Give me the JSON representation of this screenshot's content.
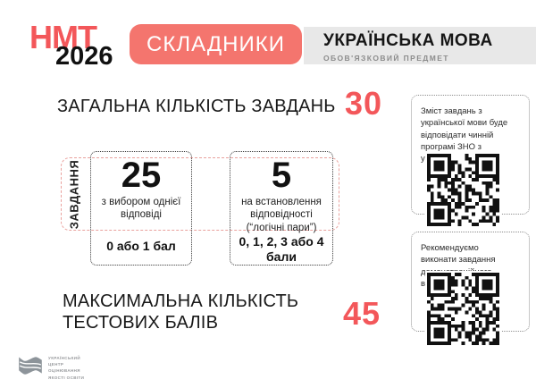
{
  "header": {
    "brand_top": "НМТ",
    "brand_year": "2026",
    "badge": "СКЛАДНИКИ",
    "subject": "УКРАЇНСЬКА МОВА",
    "subject_note": "ОБОВ'ЯЗКОВИЙ ПРЕДМЕТ"
  },
  "totals": {
    "total_label": "ЗАГАЛЬНА КІЛЬКІСТЬ ЗАВДАНЬ",
    "total_value": "30",
    "max_label_line1": "МАКСИМАЛЬНА КІЛЬКІСТЬ",
    "max_label_line2": "ТЕСТОВИХ БАЛІВ",
    "max_value": "45"
  },
  "tasks": {
    "group_label": "ЗАВДАННЯ",
    "items": [
      {
        "count": "25",
        "description": "з вибором однієї відповіді",
        "scoring": "0 або 1 бал"
      },
      {
        "count": "5",
        "description": "на встановлення відповідності (“логічні пари”)",
        "scoring": "0, 1, 2, 3 або 4 бали"
      }
    ]
  },
  "qr_cards": [
    {
      "text": "Зміст завдань з української мови буде відповідати чинній програмі ЗНО з української мови."
    },
    {
      "text": "Рекомендуємо виконати завдання демонстраційного варіанта"
    }
  ],
  "footer": {
    "org": "УКРАЇНСЬКИЙ ЦЕНТР ОЦІНЮВАННЯ ЯКОСТІ ОСВІТИ"
  },
  "colors": {
    "accent": "#f3575a",
    "badge_bg": "#f4756e",
    "bar_bg": "#e8e8e8",
    "dashed_red": "#e9a19d"
  }
}
